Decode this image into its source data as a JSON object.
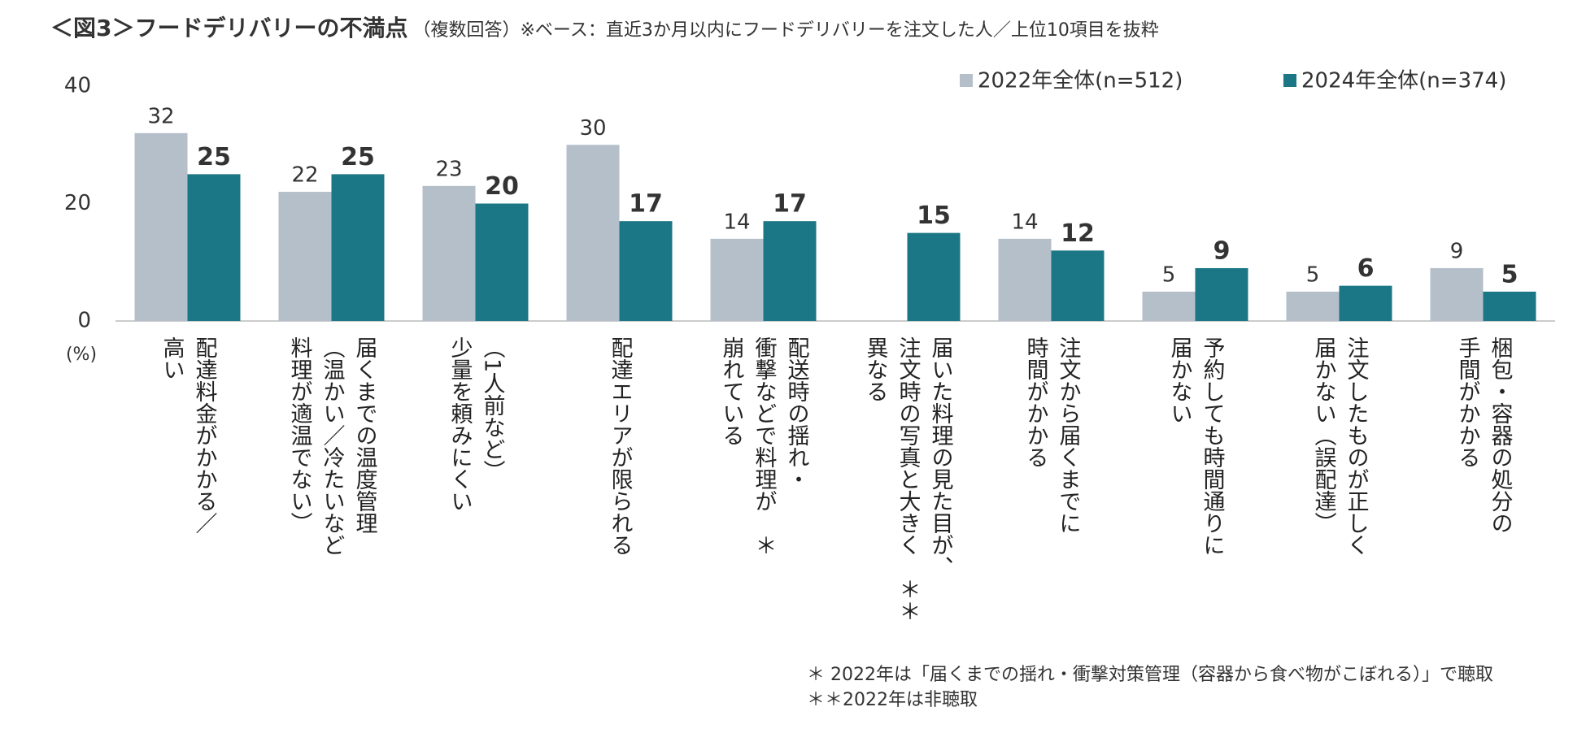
{
  "chart_data": {
    "type": "bar",
    "title": "＜図3＞フードデリバリーの不満点",
    "subtitle": "（複数回答）※ベース：直近3か月以内にフードデリバリーを注文した人／上位10項目を抜粋",
    "y_axis_label": "(%)",
    "categories": [
      "配達料金がかかる／\n高い",
      "届くまでの温度管理\n（温かい／冷たいなど\n料理が適温でない）",
      "（1人前など）\n少量を頼みにくい",
      "配達エリアが限られる",
      "配送時の揺れ・\n衝撃などで料理が　＊\n崩れている",
      "届いた料理の見た目が、\n注文時の写真と大きく　＊＊\n異なる",
      "注文から届くまでに\n時間がかかる",
      "予約しても時間通りに\n届かない",
      "注文したものが正しく\n届かない（誤配達）",
      "梱包・容器の処分の\n手間がかかる"
    ],
    "series": [
      {
        "name": "2022年全体(n=512)",
        "color": "#b4bfca",
        "values": [
          32,
          22,
          23,
          30,
          14,
          null,
          14,
          5,
          5,
          9
        ]
      },
      {
        "name": "2024年全体(n=374)",
        "color": "#1b7685",
        "values": [
          25,
          25,
          20,
          17,
          17,
          15,
          12,
          9,
          6,
          5
        ]
      }
    ],
    "ylim": [
      0,
      40
    ],
    "yticks": [
      0,
      20,
      40
    ],
    "grid": false,
    "legend": "top-right",
    "annotations": [
      "＊ 2022年は「届くまでの揺れ・衝撃対策管理（容器から食べ物がこぼれる）」で聴取",
      "＊＊2022年は非聴取"
    ]
  }
}
